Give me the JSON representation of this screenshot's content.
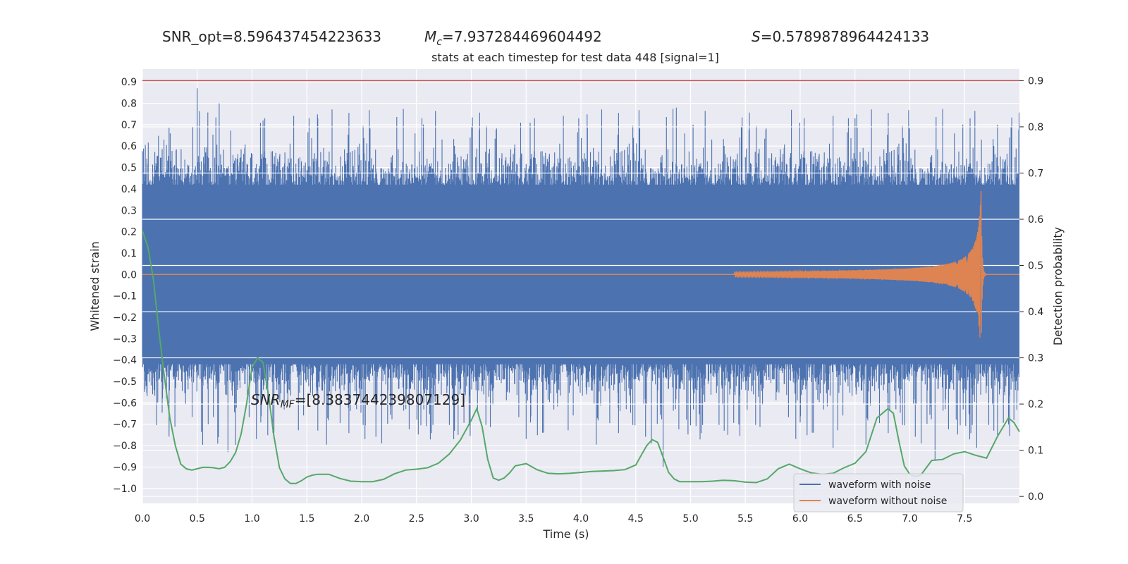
{
  "header": {
    "snr_opt": "SNR_opt=8.596437454223633",
    "mc_symbol": "M",
    "mc_sub": "c",
    "mc_value": "=7.937284469604492",
    "s_symbol": "S",
    "s_value": "=0.5789878964424133",
    "snr_mf_symbol": "SNR",
    "snr_mf_sub": "MF",
    "snr_mf_value": "=[8.383744239807129]"
  },
  "chart_data": {
    "type": "line",
    "title": "stats at each timestep for test data 448 [signal=1]",
    "xlabel": "Time (s)",
    "ylabel": "Whitened strain",
    "ylabel_right": "Detection probability",
    "xlim": [
      0.0,
      8.0
    ],
    "ylim": [
      -1.07,
      0.96
    ],
    "ylim_right": [
      -0.015,
      0.925
    ],
    "x_ticks": [
      0.0,
      0.5,
      1.0,
      1.5,
      2.0,
      2.5,
      3.0,
      3.5,
      4.0,
      4.5,
      5.0,
      5.5,
      6.0,
      6.5,
      7.0,
      7.5
    ],
    "x_tick_labels": [
      "0.0",
      "0.5",
      "1.0",
      "1.5",
      "2.0",
      "2.5",
      "3.0",
      "3.5",
      "4.0",
      "4.5",
      "5.0",
      "5.5",
      "6.0",
      "6.5",
      "7.0",
      "7.5"
    ],
    "y_ticks": [
      0.9,
      0.8,
      0.7,
      0.6,
      0.5,
      0.4,
      0.3,
      0.2,
      0.1,
      0.0,
      -0.1,
      -0.2,
      -0.3,
      -0.4,
      -0.5,
      -0.6,
      -0.7,
      -0.8,
      -0.9,
      -1.0
    ],
    "y_tick_labels": [
      "0.9",
      "0.8",
      "0.7",
      "0.6",
      "0.5",
      "0.4",
      "0.3",
      "0.2",
      "0.1",
      "0.0",
      "−0.1",
      "−0.2",
      "−0.3",
      "−0.4",
      "−0.5",
      "−0.6",
      "−0.7",
      "−0.8",
      "−0.9",
      "−1.0"
    ],
    "y_right_ticks": [
      0.9,
      0.8,
      0.7,
      0.6,
      0.5,
      0.4,
      0.3,
      0.2,
      0.1,
      0.0
    ],
    "y_right_tick_labels": [
      "0.9",
      "0.8",
      "0.7",
      "0.6",
      "0.5",
      "0.4",
      "0.3",
      "0.2",
      "0.1",
      "0.0"
    ],
    "threshold": 0.9,
    "grid": true,
    "legend_position": "bottom-right",
    "legend": [
      "waveform with noise",
      "waveform without noise"
    ],
    "series": [
      {
        "name": "waveform with noise",
        "axis": "left",
        "color": "#4c72b0",
        "description_values": {
          "core_band": [
            -0.42,
            0.42
          ],
          "peak_max": 0.87,
          "peak_min": -0.9
        }
      },
      {
        "name": "waveform without noise",
        "axis": "left",
        "color": "#dd8452",
        "chirp": {
          "start_x": 5.4,
          "peak_x": 7.65,
          "peak_amplitude": 0.41
        }
      },
      {
        "axis": "right",
        "color": "#55a868",
        "x": [
          0.0,
          0.05,
          0.1,
          0.15,
          0.2,
          0.25,
          0.3,
          0.35,
          0.4,
          0.45,
          0.5,
          0.55,
          0.6,
          0.65,
          0.7,
          0.75,
          0.8,
          0.85,
          0.9,
          0.95,
          1.0,
          1.05,
          1.1,
          1.15,
          1.2,
          1.25,
          1.3,
          1.35,
          1.4,
          1.45,
          1.5,
          1.55,
          1.6,
          1.7,
          1.8,
          1.9,
          2.0,
          2.1,
          2.2,
          2.3,
          2.4,
          2.5,
          2.6,
          2.7,
          2.8,
          2.9,
          3.0,
          3.05,
          3.1,
          3.15,
          3.2,
          3.25,
          3.3,
          3.35,
          3.4,
          3.5,
          3.6,
          3.7,
          3.8,
          3.9,
          4.0,
          4.1,
          4.2,
          4.3,
          4.4,
          4.5,
          4.55,
          4.6,
          4.65,
          4.7,
          4.75,
          4.8,
          4.85,
          4.9,
          5.0,
          5.1,
          5.2,
          5.3,
          5.4,
          5.5,
          5.6,
          5.7,
          5.8,
          5.9,
          6.0,
          6.1,
          6.2,
          6.3,
          6.4,
          6.5,
          6.6,
          6.7,
          6.8,
          6.85,
          6.9,
          6.95,
          7.0,
          7.05,
          7.1,
          7.2,
          7.3,
          7.4,
          7.5,
          7.6,
          7.7,
          7.8,
          7.9,
          7.95,
          8.0
        ],
        "values": [
          0.575,
          0.54,
          0.47,
          0.36,
          0.26,
          0.17,
          0.11,
          0.07,
          0.06,
          0.057,
          0.06,
          0.063,
          0.063,
          0.062,
          0.06,
          0.063,
          0.075,
          0.095,
          0.135,
          0.2,
          0.28,
          0.3,
          0.29,
          0.22,
          0.13,
          0.062,
          0.038,
          0.028,
          0.028,
          0.034,
          0.042,
          0.046,
          0.048,
          0.048,
          0.039,
          0.033,
          0.032,
          0.032,
          0.037,
          0.049,
          0.057,
          0.059,
          0.062,
          0.072,
          0.092,
          0.122,
          0.165,
          0.19,
          0.15,
          0.08,
          0.04,
          0.035,
          0.04,
          0.051,
          0.066,
          0.071,
          0.058,
          0.05,
          0.049,
          0.05,
          0.052,
          0.054,
          0.055,
          0.056,
          0.058,
          0.068,
          0.089,
          0.11,
          0.123,
          0.117,
          0.085,
          0.052,
          0.038,
          0.032,
          0.032,
          0.032,
          0.033,
          0.035,
          0.034,
          0.031,
          0.03,
          0.038,
          0.06,
          0.07,
          0.06,
          0.051,
          0.048,
          0.05,
          0.062,
          0.072,
          0.097,
          0.17,
          0.19,
          0.18,
          0.12,
          0.066,
          0.048,
          0.043,
          0.046,
          0.078,
          0.08,
          0.092,
          0.097,
          0.089,
          0.083,
          0.13,
          0.17,
          0.16,
          0.14
        ]
      }
    ]
  }
}
